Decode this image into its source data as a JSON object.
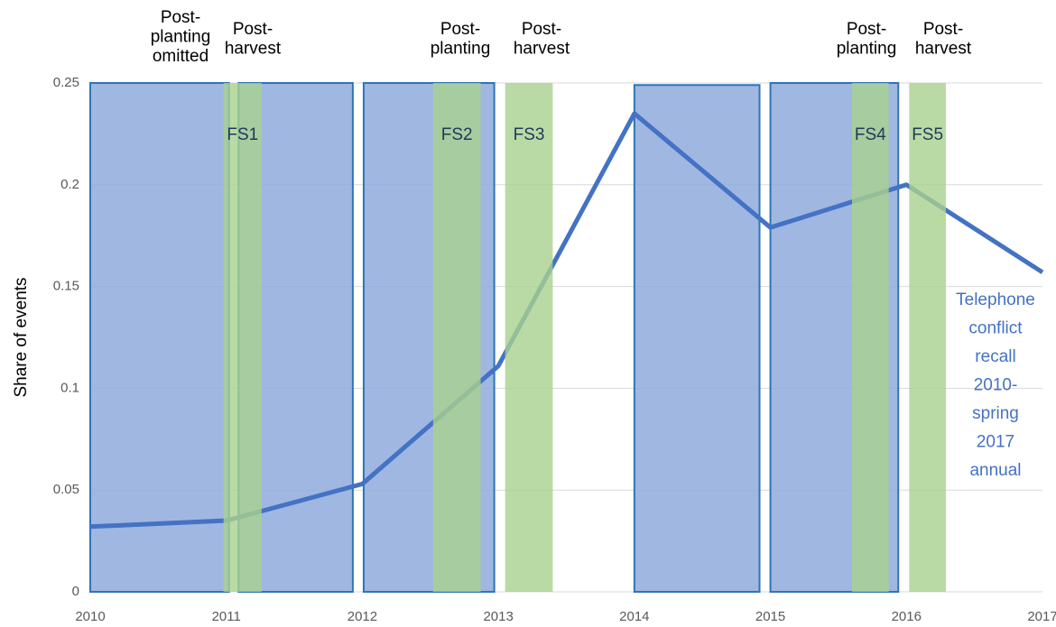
{
  "chart_data": {
    "type": "line",
    "y_label": "Share of events",
    "x": [
      2010,
      2011,
      2012,
      2013,
      2014,
      2015,
      2016,
      2017
    ],
    "series": [
      {
        "name": "Telephone conflict recall 2010-spring 2017 annual",
        "name_lines": [
          "Telephone",
          "conflict",
          "recall",
          "2010-",
          "spring",
          "2017",
          "annual"
        ],
        "color": "#4472c4",
        "values": [
          0.032,
          0.035,
          0.053,
          0.111,
          0.235,
          0.179,
          0.2,
          0.157
        ]
      }
    ],
    "xlim": [
      2010,
      2017
    ],
    "xticks": [
      2010,
      2011,
      2012,
      2013,
      2014,
      2015,
      2016,
      2017
    ],
    "ylim": [
      0,
      0.25
    ],
    "yticks": [
      0,
      0.05,
      0.1,
      0.15,
      0.2,
      0.25
    ],
    "grid": true,
    "boxes": [
      {
        "x0": 2010.0,
        "x1": 2011.02,
        "y1": 0.25
      },
      {
        "x0": 2011.09,
        "x1": 2011.93,
        "y1": 0.25
      },
      {
        "x0": 2012.01,
        "x1": 2012.97,
        "y1": 0.25
      },
      {
        "x0": 2014.0,
        "x1": 2014.92,
        "y1": 0.249
      },
      {
        "x0": 2015.0,
        "x1": 2015.94,
        "y1": 0.25
      }
    ],
    "box_color": "#8faadc",
    "band_color": "#a9d18e",
    "bands": [
      {
        "label": "FS1",
        "x0": 2010.98,
        "x1": 2011.26
      },
      {
        "label": "FS2",
        "x0": 2012.52,
        "x1": 2012.87
      },
      {
        "label": "FS3",
        "x0": 2013.05,
        "x1": 2013.4
      },
      {
        "label": "FS4",
        "x0": 2015.6,
        "x1": 2015.87
      },
      {
        "label": "FS5",
        "x0": 2016.02,
        "x1": 2016.29
      }
    ],
    "annotations": [
      {
        "lines": [
          "Post-",
          "planting",
          "omitted"
        ]
      },
      {
        "lines": [
          "Post-",
          "harvest"
        ]
      },
      {
        "lines": [
          "Post-",
          "planting"
        ]
      },
      {
        "lines": [
          "Post-",
          "harvest"
        ]
      },
      {
        "lines": [
          "Post-",
          "planting"
        ]
      },
      {
        "lines": [
          "Post-",
          "harvest"
        ]
      }
    ]
  }
}
